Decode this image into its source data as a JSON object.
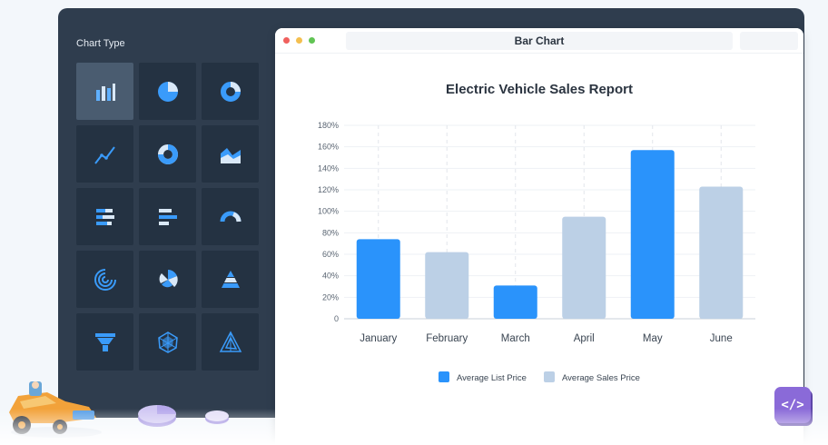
{
  "sidebar": {
    "title": "Chart Type",
    "items": [
      {
        "icon": "bar-chart-icon",
        "active": true
      },
      {
        "icon": "pie-chart-icon"
      },
      {
        "icon": "donut-chart-icon"
      },
      {
        "icon": "line-chart-icon"
      },
      {
        "icon": "doughnut-segment-icon"
      },
      {
        "icon": "area-chart-icon"
      },
      {
        "icon": "stacked-bar-icon"
      },
      {
        "icon": "horizontal-bar-icon"
      },
      {
        "icon": "gauge-chart-icon"
      },
      {
        "icon": "radial-bar-icon"
      },
      {
        "icon": "polar-chart-icon"
      },
      {
        "icon": "pyramid-chart-icon"
      },
      {
        "icon": "funnel-chart-icon"
      },
      {
        "icon": "radar-chart-icon"
      },
      {
        "icon": "triangle-radar-icon"
      }
    ]
  },
  "window": {
    "title": "Bar Chart"
  },
  "colors": {
    "list_price": "#2a93fb",
    "sales_price": "#bcd0e6",
    "panel": "#2f3d4e",
    "tile": "#243242",
    "icon": "#3a9bfa"
  },
  "chart_data": {
    "type": "bar",
    "title": "Electric Vehicle Sales Report",
    "categories": [
      "January",
      "February",
      "March",
      "April",
      "May",
      "June"
    ],
    "values": [
      74,
      62,
      31,
      95,
      157,
      123
    ],
    "series_of_bar": [
      "Average List Price",
      "Average Sales Price",
      "Average List Price",
      "Average Sales Price",
      "Average List Price",
      "Average Sales Price"
    ],
    "legend": [
      "Average List Price",
      "Average Sales Price"
    ],
    "legend_position": "bottom",
    "yticks": [
      "0",
      "20%",
      "40%",
      "60%",
      "80%",
      "100%",
      "120%",
      "140%",
      "160%",
      "180%"
    ],
    "ylim": [
      0,
      180
    ],
    "grid": true
  }
}
